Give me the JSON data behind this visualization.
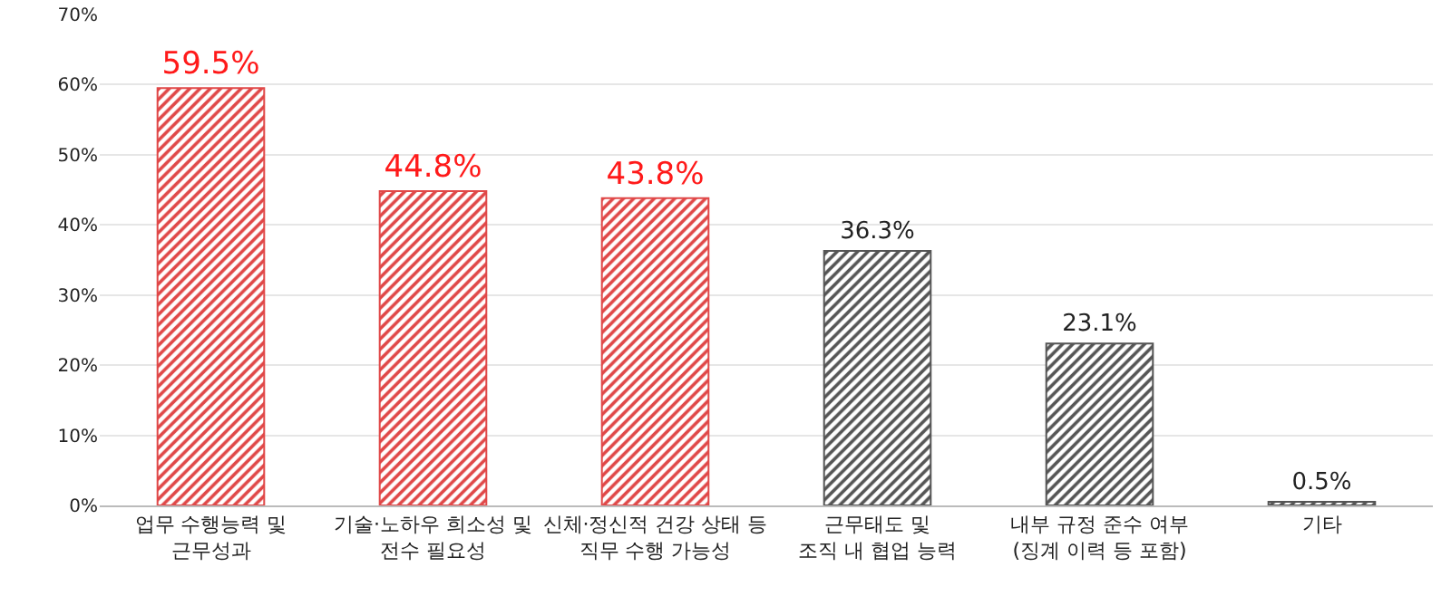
{
  "chart_data": {
    "type": "bar",
    "categories": [
      "업무 수행능력 및\n근무성과",
      "기술·노하우 희소성 및\n전수 필요성",
      "신체·정신적 건강 상태 등\n직무 수행 가능성",
      "근무태도 및\n조직 내 협업 능력",
      "내부 규정 준수 여부\n(징계 이력 등 포함)",
      "기타"
    ],
    "values": [
      59.5,
      44.8,
      43.8,
      36.3,
      23.1,
      0.5
    ],
    "value_labels": [
      "59.5%",
      "44.8%",
      "43.8%",
      "36.3%",
      "23.1%",
      "0.5%"
    ],
    "colors": [
      "#e04848",
      "#e04848",
      "#e04848",
      "#555555",
      "#555555",
      "#555555"
    ],
    "ylim": [
      0,
      70
    ],
    "yticks": [
      {
        "value": 0,
        "label": "0%"
      },
      {
        "value": 10,
        "label": "10%"
      },
      {
        "value": 20,
        "label": "20%"
      },
      {
        "value": 30,
        "label": "30%"
      },
      {
        "value": 40,
        "label": "40%"
      },
      {
        "value": 50,
        "label": "50%"
      },
      {
        "value": 60,
        "label": "60%"
      },
      {
        "value": 70,
        "label": "70%"
      }
    ],
    "grid": "y",
    "legend": false
  }
}
